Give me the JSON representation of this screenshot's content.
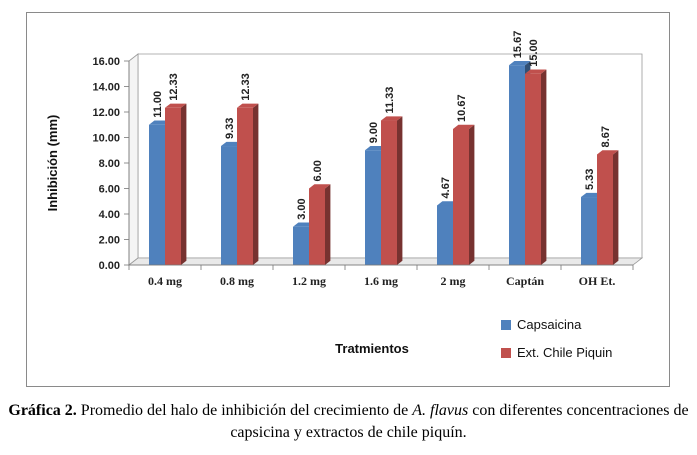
{
  "chart_data": {
    "type": "bar",
    "categories": [
      "0.4 mg",
      "0.8 mg",
      "1.2 mg",
      "1.6 mg",
      "2 mg",
      "Captán",
      "OH Et."
    ],
    "series": [
      {
        "name": "Capsaicina",
        "values": [
          11.0,
          9.33,
          3.0,
          9.0,
          4.67,
          15.67,
          5.33
        ],
        "labels": [
          "11.00",
          "9.33",
          "3.00",
          "9.00",
          "4.67",
          "15.67",
          "5.33"
        ],
        "color": "#4f81bd"
      },
      {
        "name": "Ext. Chile Piquin",
        "values": [
          12.33,
          12.33,
          6.0,
          11.33,
          10.67,
          15.0,
          8.67
        ],
        "labels": [
          "12.33",
          "12.33",
          "6.00",
          "11.33",
          "10.67",
          "15.00",
          "8.67"
        ],
        "color": "#c0504d"
      }
    ],
    "ylabel": "Inhibición (mm)",
    "xlabel": "Tratmientos",
    "ylim": [
      0,
      16
    ],
    "yticks": [
      "0.00",
      "2.00",
      "4.00",
      "6.00",
      "8.00",
      "10.00",
      "12.00",
      "14.00",
      "16.00"
    ],
    "legend_position": "bottom-right",
    "grid": false
  },
  "caption": {
    "label": "Gráfica 2.",
    "text_before": " Promedio del halo de inhibición del crecimiento de ",
    "species": "A. flavus",
    "text_after": " con diferentes concentraciones de capsicina y extractos de chile piquín."
  }
}
